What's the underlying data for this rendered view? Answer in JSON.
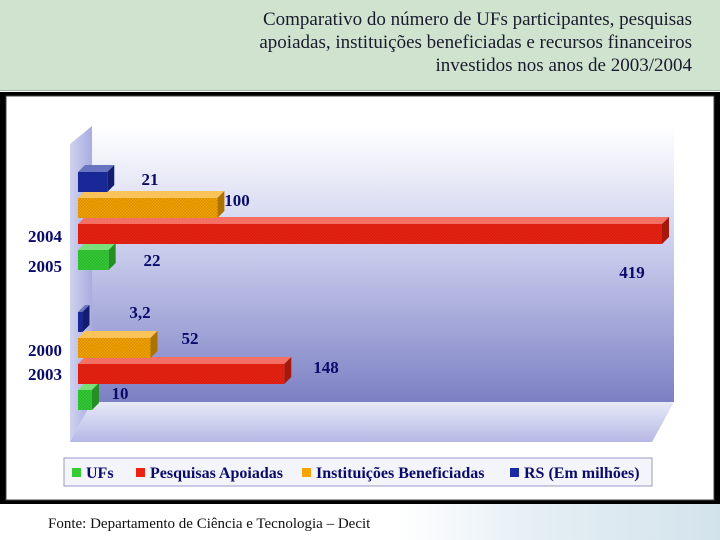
{
  "header": {
    "title_lines": [
      "Comparativo do número de UFs participantes, pesquisas",
      "apoiadas, instituições beneficiadas e recursos financeiros",
      "investidos nos anos de 2003/2004"
    ]
  },
  "footer": {
    "source": "Fonte: Departamento de Ciência e Tecnologia – Decit"
  },
  "chart_data": {
    "type": "bar",
    "orientation": "horizontal",
    "categories": [
      {
        "lines": [
          "2004",
          "2005"
        ]
      },
      {
        "lines": [
          "2000",
          "2003"
        ]
      }
    ],
    "series": [
      {
        "name": "UFs",
        "color": "#33cc33",
        "values": [
          22,
          10
        ],
        "labels": [
          "22",
          "10"
        ]
      },
      {
        "name": "Pesquisas Apoiadas",
        "color": "#ee2211",
        "values": [
          419,
          148
        ],
        "labels": [
          "419",
          "148"
        ]
      },
      {
        "name": "Instituições Beneficiadas",
        "color": "#f5a300",
        "values": [
          100,
          52
        ],
        "labels": [
          "100",
          "52"
        ]
      },
      {
        "name": "RS (Em milhões)",
        "color": "#1a2aa0",
        "values": [
          21,
          3.2
        ],
        "labels": [
          "21",
          "3,2"
        ]
      }
    ],
    "xlim": [
      0,
      419
    ],
    "grid": false,
    "legend": "bottom",
    "title": "",
    "xlabel": "",
    "ylabel": ""
  }
}
